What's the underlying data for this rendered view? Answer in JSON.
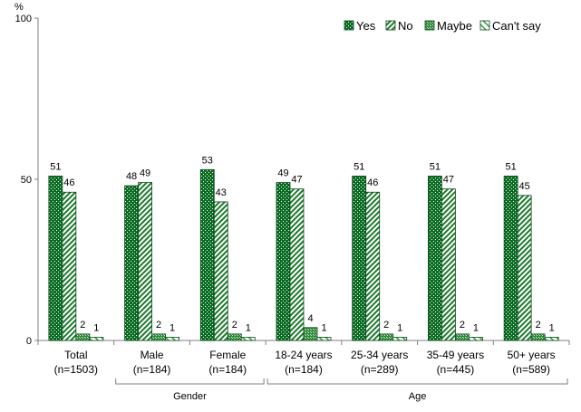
{
  "chart_data": {
    "type": "bar",
    "ylabel": "%",
    "ylim": [
      0,
      100
    ],
    "yticks": [
      0,
      50,
      100
    ],
    "categories": [
      [
        "Total",
        "(n=1503)"
      ],
      [
        "Male",
        "(n=184)"
      ],
      [
        "Female",
        "(n=184)"
      ],
      [
        "18-24 years",
        "(n=184)"
      ],
      [
        "25-34 years",
        "(n=289)"
      ],
      [
        "35-49 years",
        "(n=445)"
      ],
      [
        "50+ years",
        "(n=589)"
      ]
    ],
    "groups": [
      {
        "label": "Gender",
        "from": 1,
        "to": 2
      },
      {
        "label": "Age",
        "from": 3,
        "to": 6
      }
    ],
    "series": [
      {
        "name": "Yes",
        "pattern": "dots-dark",
        "color": "#0a6b22",
        "values": [
          51,
          48,
          53,
          49,
          51,
          51,
          51
        ]
      },
      {
        "name": "No",
        "pattern": "diagonal",
        "color": "#1e7a2e",
        "values": [
          46,
          49,
          43,
          47,
          46,
          47,
          45
        ]
      },
      {
        "name": "Maybe",
        "pattern": "checker",
        "color": "#2e8a3a",
        "values": [
          2,
          2,
          2,
          4,
          2,
          2,
          2
        ]
      },
      {
        "name": "Can't say",
        "pattern": "light-diagonal",
        "color": "#3a9a46",
        "values": [
          1,
          1,
          1,
          1,
          1,
          1,
          1
        ]
      }
    ],
    "legend_position": "top-right",
    "grid": false
  }
}
